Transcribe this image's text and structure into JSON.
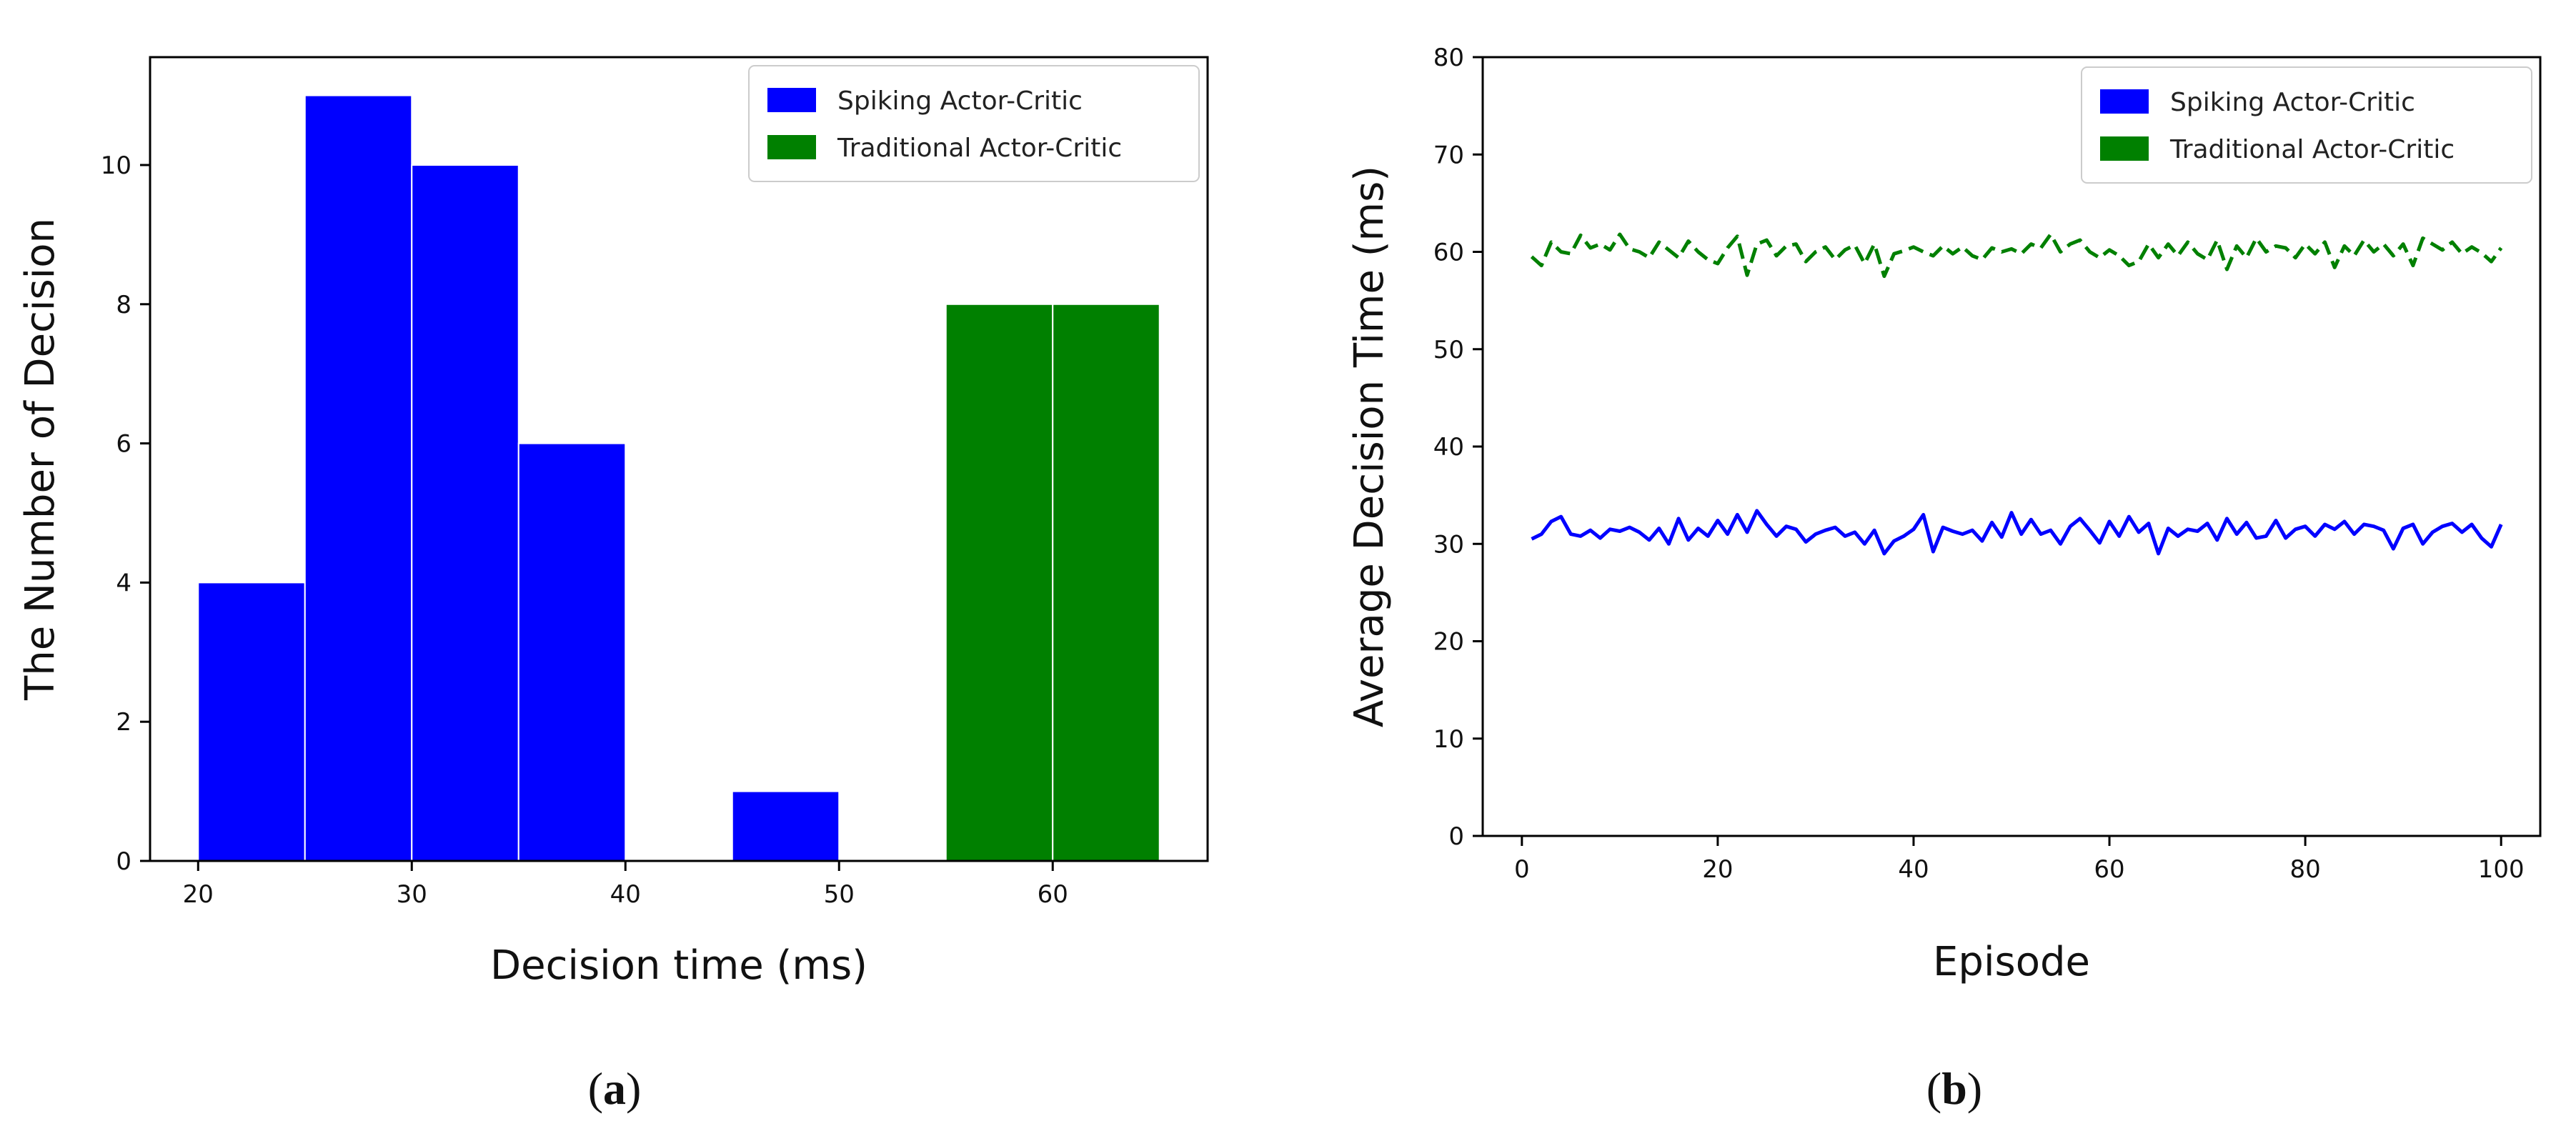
{
  "colors": {
    "spiking": "#0000ff",
    "traditional": "#008000"
  },
  "panels": {
    "a": {
      "tag_open": "(",
      "tag_letter": "a",
      "tag_close": ")"
    },
    "b": {
      "tag_open": "(",
      "tag_letter": "b",
      "tag_close": ")"
    }
  },
  "chart_data": [
    {
      "id": "a",
      "type": "bar",
      "title": "",
      "xlabel": "Decision time (ms)",
      "ylabel": "The Number of Decision",
      "xlim": [
        17.75,
        67.25
      ],
      "ylim": [
        0,
        11.55
      ],
      "xticks": [
        20,
        30,
        40,
        50,
        60
      ],
      "yticks": [
        0,
        2,
        4,
        6,
        8,
        10
      ],
      "grid": false,
      "legend_position": "top-right",
      "series": [
        {
          "name": "Spiking Actor-Critic",
          "color": "#0000ff",
          "bins": [
            {
              "x0": 20,
              "x1": 25,
              "count": 4
            },
            {
              "x0": 25,
              "x1": 30,
              "count": 11
            },
            {
              "x0": 30,
              "x1": 35,
              "count": 10
            },
            {
              "x0": 35,
              "x1": 40,
              "count": 6
            },
            {
              "x0": 45,
              "x1": 50,
              "count": 1
            }
          ]
        },
        {
          "name": "Traditional Actor-Critic",
          "color": "#008000",
          "bins": [
            {
              "x0": 55,
              "x1": 60,
              "count": 8
            },
            {
              "x0": 60,
              "x1": 65,
              "count": 8
            }
          ]
        }
      ]
    },
    {
      "id": "b",
      "type": "line",
      "title": "",
      "xlabel": "Episode",
      "ylabel": "Average Decision Time (ms)",
      "xlim": [
        -4,
        104
      ],
      "ylim": [
        0,
        80
      ],
      "xticks": [
        0,
        20,
        40,
        60,
        80,
        100
      ],
      "yticks": [
        0,
        10,
        20,
        30,
        40,
        50,
        60,
        70,
        80
      ],
      "grid": false,
      "legend_position": "top-right",
      "series": [
        {
          "name": "Spiking Actor-Critic",
          "color": "#0000ff",
          "style": "solid",
          "x": [
            1,
            2,
            3,
            4,
            5,
            6,
            7,
            8,
            9,
            10,
            11,
            12,
            13,
            14,
            15,
            16,
            17,
            18,
            19,
            20,
            21,
            22,
            23,
            24,
            25,
            26,
            27,
            28,
            29,
            30,
            31,
            32,
            33,
            34,
            35,
            36,
            37,
            38,
            39,
            40,
            41,
            42,
            43,
            44,
            45,
            46,
            47,
            48,
            49,
            50,
            51,
            52,
            53,
            54,
            55,
            56,
            57,
            58,
            59,
            60,
            61,
            62,
            63,
            64,
            65,
            66,
            67,
            68,
            69,
            70,
            71,
            72,
            73,
            74,
            75,
            76,
            77,
            78,
            79,
            80,
            81,
            82,
            83,
            84,
            85,
            86,
            87,
            88,
            89,
            90,
            91,
            92,
            93,
            94,
            95,
            96,
            97,
            98,
            99,
            100
          ],
          "y": [
            30.5,
            31.0,
            32.3,
            32.8,
            31.0,
            30.8,
            31.4,
            30.6,
            31.5,
            31.3,
            31.7,
            31.2,
            30.4,
            31.6,
            30.0,
            32.6,
            30.4,
            31.6,
            30.8,
            32.4,
            31.0,
            33.0,
            31.2,
            33.4,
            32.0,
            30.8,
            31.8,
            31.5,
            30.2,
            31.0,
            31.4,
            31.7,
            30.8,
            31.2,
            30.0,
            31.4,
            29.0,
            30.3,
            30.8,
            31.5,
            33.0,
            29.2,
            31.7,
            31.3,
            31.0,
            31.4,
            30.3,
            32.2,
            30.7,
            33.2,
            31.0,
            32.5,
            31.0,
            31.4,
            30.0,
            31.8,
            32.6,
            31.4,
            30.1,
            32.3,
            30.8,
            32.8,
            31.2,
            32.1,
            29.0,
            31.6,
            30.8,
            31.5,
            31.3,
            32.1,
            30.4,
            32.6,
            31.0,
            32.2,
            30.6,
            30.8,
            32.4,
            30.6,
            31.5,
            31.8,
            30.8,
            32.0,
            31.5,
            32.3,
            31.0,
            32.0,
            31.8,
            31.4,
            29.5,
            31.6,
            32.0,
            30.0,
            31.2,
            31.8,
            32.1,
            31.2,
            32.0,
            30.6,
            29.7,
            32.0
          ]
        },
        {
          "name": "Traditional Actor-Critic",
          "color": "#008000",
          "style": "dashed",
          "x": [
            1,
            2,
            3,
            4,
            5,
            6,
            7,
            8,
            9,
            10,
            11,
            12,
            13,
            14,
            15,
            16,
            17,
            18,
            19,
            20,
            21,
            22,
            23,
            24,
            25,
            26,
            27,
            28,
            29,
            30,
            31,
            32,
            33,
            34,
            35,
            36,
            37,
            38,
            39,
            40,
            41,
            42,
            43,
            44,
            45,
            46,
            47,
            48,
            49,
            50,
            51,
            52,
            53,
            54,
            55,
            56,
            57,
            58,
            59,
            60,
            61,
            62,
            63,
            64,
            65,
            66,
            67,
            68,
            69,
            70,
            71,
            72,
            73,
            74,
            75,
            76,
            77,
            78,
            79,
            80,
            81,
            82,
            83,
            84,
            85,
            86,
            87,
            88,
            89,
            90,
            91,
            92,
            93,
            94,
            95,
            96,
            97,
            98,
            99,
            100
          ],
          "y": [
            59.5,
            58.6,
            61.0,
            60.0,
            59.8,
            61.7,
            60.4,
            60.8,
            60.2,
            61.8,
            60.3,
            60.0,
            59.4,
            61.0,
            60.2,
            59.4,
            61.1,
            60.0,
            59.2,
            58.8,
            60.4,
            61.6,
            57.6,
            60.8,
            61.2,
            59.6,
            60.6,
            60.8,
            59.0,
            60.0,
            60.5,
            59.2,
            60.2,
            60.7,
            58.8,
            60.8,
            57.5,
            59.8,
            60.1,
            60.5,
            60.0,
            59.6,
            60.6,
            59.8,
            60.5,
            59.6,
            59.2,
            60.4,
            60.0,
            60.3,
            59.8,
            60.8,
            60.4,
            61.8,
            60.0,
            60.8,
            61.2,
            60.0,
            59.4,
            60.2,
            59.6,
            58.6,
            59.0,
            60.8,
            59.4,
            60.8,
            59.6,
            61.0,
            59.8,
            59.2,
            61.2,
            58.2,
            60.6,
            59.4,
            61.4,
            60.0,
            60.6,
            60.4,
            59.4,
            60.8,
            59.8,
            61.0,
            58.4,
            60.6,
            59.6,
            61.2,
            60.0,
            60.8,
            59.6,
            60.8,
            58.6,
            61.4,
            60.8,
            60.2,
            61.0,
            59.8,
            60.5,
            59.9,
            59.0,
            60.4
          ]
        }
      ]
    }
  ]
}
